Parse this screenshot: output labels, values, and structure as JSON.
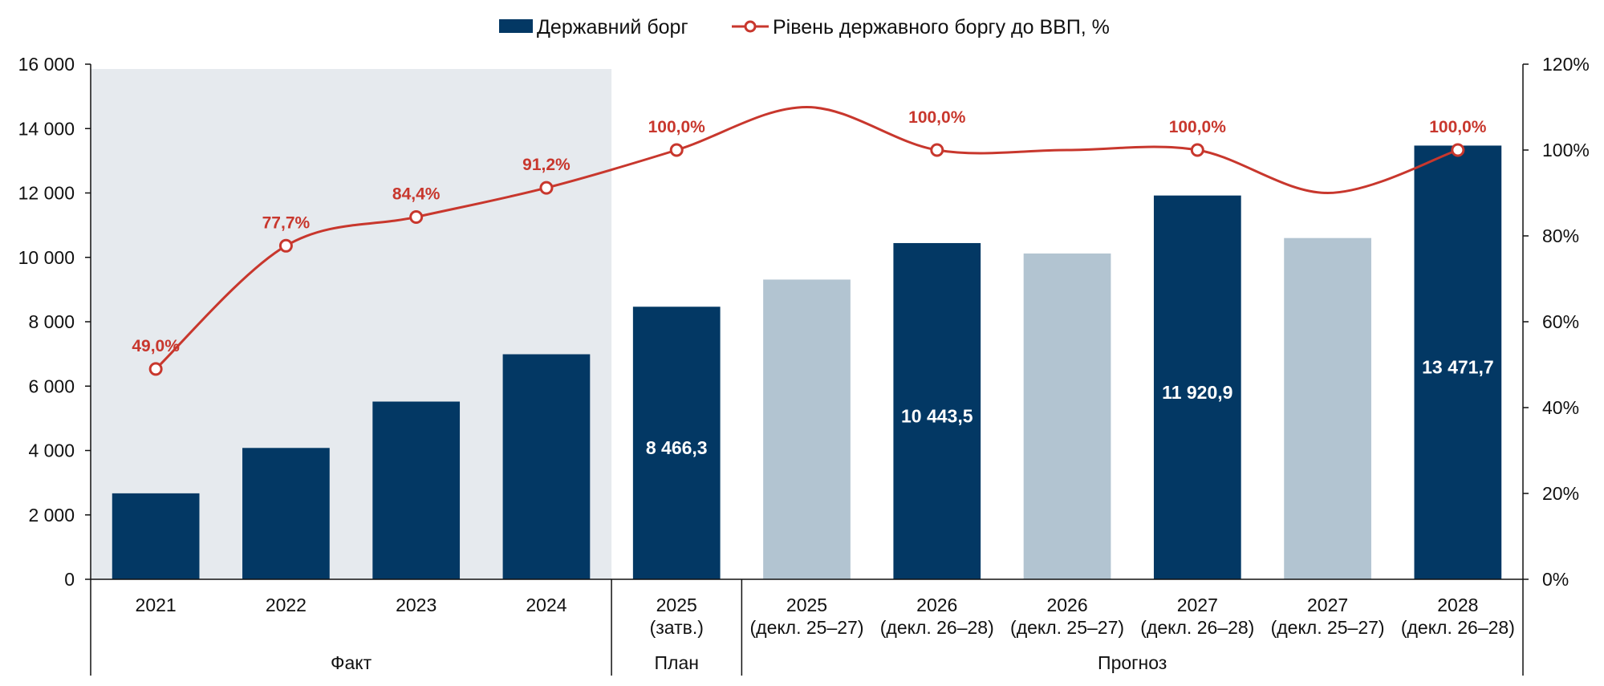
{
  "legend": {
    "bars_label": "Державний борг",
    "line_label": "Рівень державного боргу до ВВП, %"
  },
  "colors": {
    "bar_dark": "#033864",
    "bar_light": "#b2c4d1",
    "line": "#c8372d",
    "fact_shade": "#e6eaee",
    "axis": "#111111"
  },
  "chart_data": {
    "type": "bar",
    "categories": [
      [
        "2021"
      ],
      [
        "2022"
      ],
      [
        "2023"
      ],
      [
        "2024"
      ],
      [
        "2025",
        "(затв.)"
      ],
      [
        "2025",
        "(декл. 25–27)"
      ],
      [
        "2026",
        "(декл. 26–28)"
      ],
      [
        "2026",
        "(декл. 25–27)"
      ],
      [
        "2027",
        "(декл. 26–28)"
      ],
      [
        "2027",
        "(декл. 25–27)"
      ],
      [
        "2028",
        "(декл. 26–28)"
      ]
    ],
    "groups": [
      {
        "label": "Факт",
        "count": 4,
        "shaded": true
      },
      {
        "label": "План",
        "count": 1,
        "shaded": false
      },
      {
        "label": "Прогноз",
        "count": 6,
        "shaded": false
      }
    ],
    "series": [
      {
        "name": "Державний борг",
        "type": "bar",
        "axis": "left",
        "values": [
          2670,
          4080,
          5520,
          6990,
          8466.3,
          9310,
          10443.5,
          10120,
          11920.9,
          10600,
          13471.7
        ],
        "styles": [
          "dark",
          "dark",
          "dark",
          "dark",
          "dark",
          "light",
          "dark",
          "light",
          "dark",
          "light",
          "dark"
        ],
        "data_labels": [
          "",
          "",
          "",
          "",
          "8 466,3",
          "",
          "10 443,5",
          "",
          "11 920,9",
          "",
          "13 471,7"
        ]
      },
      {
        "name": "Рівень державного боргу до ВВП, %",
        "type": "line",
        "axis": "right",
        "values": [
          49.0,
          77.7,
          84.4,
          91.2,
          100.0,
          null,
          100.0,
          null,
          100.0,
          null,
          100.0
        ],
        "data_labels": [
          "49,0%",
          "77,7%",
          "84,4%",
          "91,2%",
          "100,0%",
          "",
          "100,0%",
          "",
          "100,0%",
          "",
          "100,0%"
        ]
      }
    ],
    "y_left": {
      "min": 0,
      "max": 16000,
      "ticks": [
        0,
        2000,
        4000,
        6000,
        8000,
        10000,
        12000,
        14000,
        16000
      ],
      "tick_labels": [
        "0",
        "2 000",
        "4 000",
        "6 000",
        "8 000",
        "10 000",
        "12 000",
        "14 000",
        "16 000"
      ]
    },
    "y_right": {
      "min": 0,
      "max": 120,
      "ticks": [
        0,
        20,
        40,
        60,
        80,
        100,
        120
      ],
      "tick_labels": [
        "0%",
        "20%",
        "40%",
        "60%",
        "80%",
        "100%",
        "120%"
      ]
    },
    "grid": false,
    "legend_position": "top-center"
  }
}
